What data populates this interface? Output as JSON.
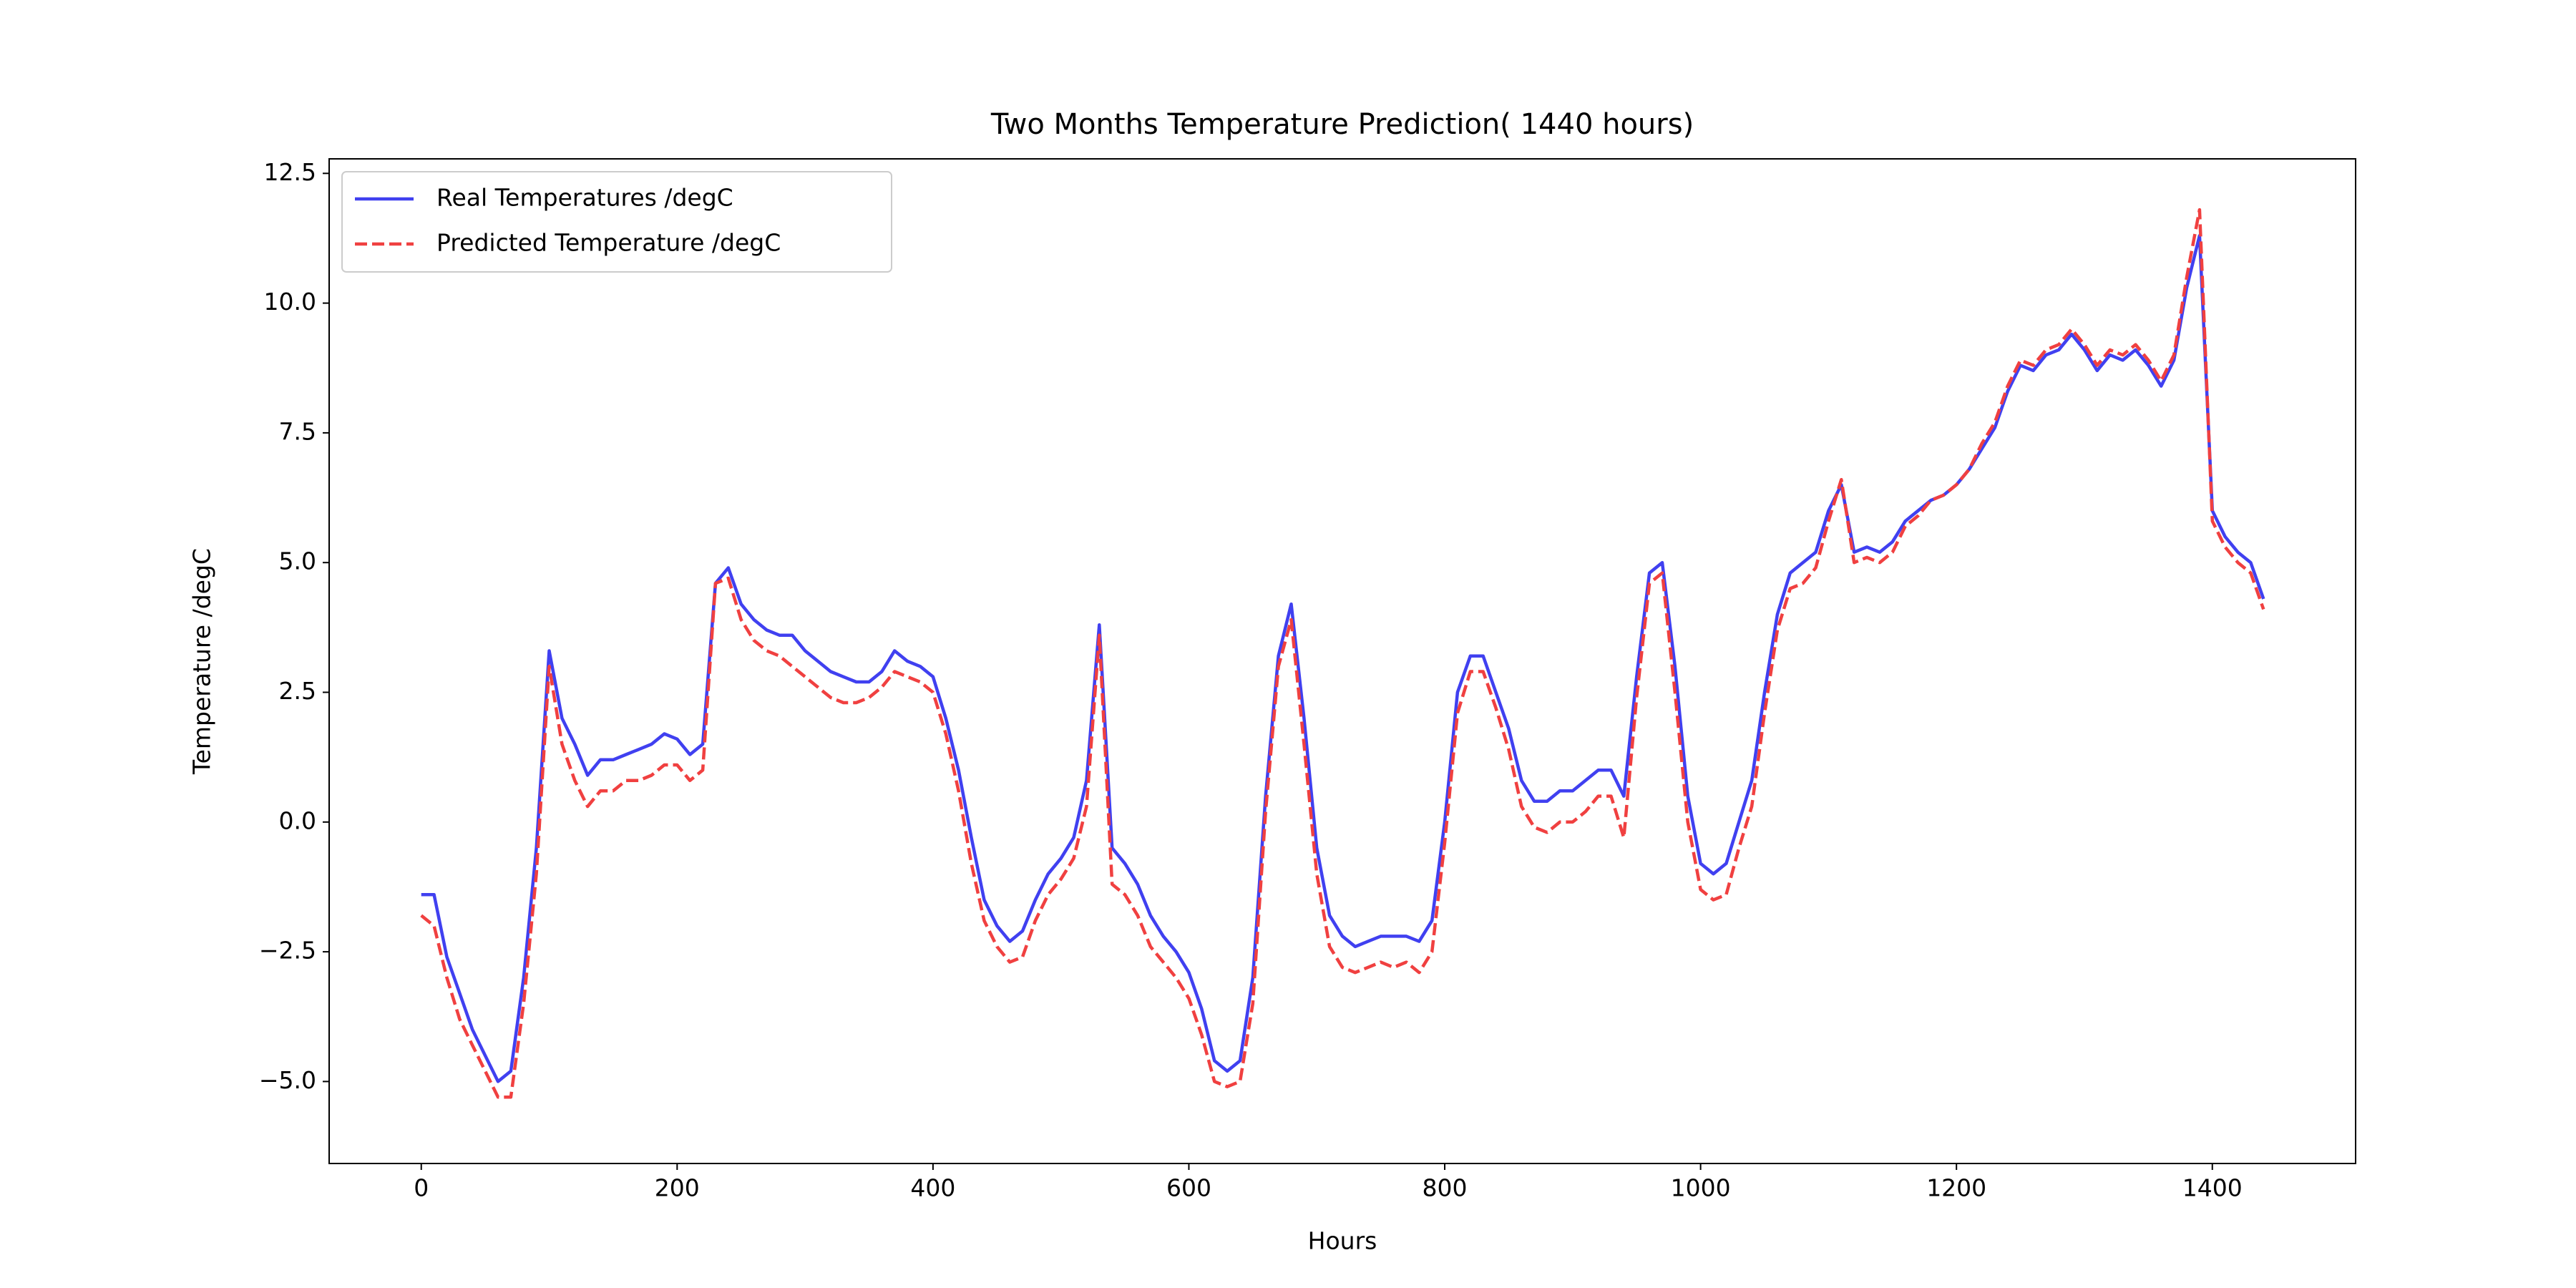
{
  "chart_data": {
    "type": "line",
    "title": "Two Months Temperature Prediction( 1440 hours)",
    "x_label": "Hours",
    "y_label": "Temperature /degC",
    "x": [
      0,
      10,
      20,
      30,
      40,
      50,
      60,
      70,
      80,
      90,
      100,
      110,
      120,
      130,
      140,
      150,
      160,
      170,
      180,
      190,
      200,
      210,
      220,
      230,
      240,
      250,
      260,
      270,
      280,
      290,
      300,
      310,
      320,
      330,
      340,
      350,
      360,
      370,
      380,
      390,
      400,
      410,
      420,
      430,
      440,
      450,
      460,
      470,
      480,
      490,
      500,
      510,
      520,
      530,
      540,
      550,
      560,
      570,
      580,
      590,
      600,
      610,
      620,
      630,
      640,
      650,
      660,
      670,
      680,
      690,
      700,
      710,
      720,
      730,
      740,
      750,
      760,
      770,
      780,
      790,
      800,
      810,
      820,
      830,
      840,
      850,
      860,
      870,
      880,
      890,
      900,
      910,
      920,
      930,
      940,
      950,
      960,
      970,
      980,
      990,
      1000,
      1010,
      1020,
      1030,
      1040,
      1050,
      1060,
      1070,
      1080,
      1090,
      1100,
      1110,
      1120,
      1130,
      1140,
      1150,
      1160,
      1170,
      1180,
      1190,
      1200,
      1210,
      1220,
      1230,
      1240,
      1250,
      1260,
      1270,
      1280,
      1290,
      1300,
      1310,
      1320,
      1330,
      1340,
      1350,
      1360,
      1370,
      1380,
      1390,
      1400,
      1410,
      1420,
      1430,
      1440
    ],
    "series": [
      {
        "name": "Real Temperatures /degC",
        "color": "#4040f0",
        "linestyle": "solid",
        "values": [
          -1.4,
          -1.4,
          -2.6,
          -3.3,
          -4.0,
          -4.5,
          -5.0,
          -4.8,
          -3.0,
          -0.5,
          3.3,
          2.0,
          1.5,
          0.9,
          1.2,
          1.2,
          1.3,
          1.4,
          1.5,
          1.7,
          1.6,
          1.3,
          1.5,
          4.6,
          4.9,
          4.2,
          3.9,
          3.7,
          3.6,
          3.6,
          3.3,
          3.1,
          2.9,
          2.8,
          2.7,
          2.7,
          2.9,
          3.3,
          3.1,
          3.0,
          2.8,
          2.0,
          1.0,
          -0.3,
          -1.5,
          -2.0,
          -2.3,
          -2.1,
          -1.5,
          -1.0,
          -0.7,
          -0.3,
          0.8,
          3.8,
          -0.5,
          -0.8,
          -1.2,
          -1.8,
          -2.2,
          -2.5,
          -2.9,
          -3.6,
          -4.6,
          -4.8,
          -4.6,
          -3.0,
          0.5,
          3.2,
          4.2,
          2.0,
          -0.5,
          -1.8,
          -2.2,
          -2.4,
          -2.3,
          -2.2,
          -2.2,
          -2.2,
          -2.3,
          -1.9,
          0.0,
          2.5,
          3.2,
          3.2,
          2.5,
          1.8,
          0.8,
          0.4,
          0.4,
          0.6,
          0.6,
          0.8,
          1.0,
          1.0,
          0.5,
          2.8,
          4.8,
          5.0,
          3.0,
          0.5,
          -0.8,
          -1.0,
          -0.8,
          0.0,
          0.8,
          2.5,
          4.0,
          4.8,
          5.0,
          5.2,
          6.0,
          6.5,
          5.2,
          5.3,
          5.2,
          5.4,
          5.8,
          6.0,
          6.2,
          6.3,
          6.5,
          6.8,
          7.2,
          7.6,
          8.3,
          8.8,
          8.7,
          9.0,
          9.1,
          9.4,
          9.1,
          8.7,
          9.0,
          8.9,
          9.1,
          8.8,
          8.4,
          8.9,
          10.3,
          11.3,
          6.0,
          5.5,
          5.2,
          5.0,
          4.3
        ]
      },
      {
        "name": "Predicted Temperature /degC",
        "color": "#f04040",
        "linestyle": "dashed",
        "values": [
          -1.8,
          -2.0,
          -3.0,
          -3.8,
          -4.3,
          -4.8,
          -5.3,
          -5.3,
          -3.5,
          -1.0,
          3.0,
          1.5,
          0.8,
          0.3,
          0.6,
          0.6,
          0.8,
          0.8,
          0.9,
          1.1,
          1.1,
          0.8,
          1.0,
          4.6,
          4.7,
          3.9,
          3.5,
          3.3,
          3.2,
          3.0,
          2.8,
          2.6,
          2.4,
          2.3,
          2.3,
          2.4,
          2.6,
          2.9,
          2.8,
          2.7,
          2.5,
          1.7,
          0.6,
          -0.8,
          -1.9,
          -2.4,
          -2.7,
          -2.6,
          -1.9,
          -1.4,
          -1.1,
          -0.7,
          0.3,
          3.6,
          -1.2,
          -1.4,
          -1.8,
          -2.4,
          -2.7,
          -3.0,
          -3.4,
          -4.1,
          -5.0,
          -5.1,
          -5.0,
          -3.5,
          0.2,
          3.0,
          3.9,
          1.5,
          -1.0,
          -2.4,
          -2.8,
          -2.9,
          -2.8,
          -2.7,
          -2.8,
          -2.7,
          -2.9,
          -2.5,
          -0.4,
          2.1,
          2.9,
          2.9,
          2.2,
          1.4,
          0.3,
          -0.1,
          -0.2,
          0.0,
          0.0,
          0.2,
          0.5,
          0.5,
          -0.3,
          2.4,
          4.6,
          4.8,
          2.5,
          0.0,
          -1.3,
          -1.5,
          -1.4,
          -0.5,
          0.3,
          2.1,
          3.7,
          4.5,
          4.6,
          4.9,
          5.8,
          6.6,
          5.0,
          5.1,
          5.0,
          5.2,
          5.7,
          5.9,
          6.2,
          6.3,
          6.5,
          6.8,
          7.3,
          7.7,
          8.4,
          8.9,
          8.8,
          9.1,
          9.2,
          9.5,
          9.2,
          8.8,
          9.1,
          9.0,
          9.2,
          8.9,
          8.5,
          9.0,
          10.5,
          11.8,
          5.8,
          5.3,
          5.0,
          4.8,
          4.1
        ]
      }
    ],
    "xlim": [
      -72,
      1512
    ],
    "ylim": [
      -6.58,
      12.78
    ],
    "xticks": [
      0,
      200,
      400,
      600,
      800,
      1000,
      1200,
      1400
    ],
    "yticks": [
      {
        "value": -5,
        "label": "−5.0"
      },
      {
        "value": -2.5,
        "label": "−2.5"
      },
      {
        "value": 0,
        "label": "0.0"
      },
      2.5,
      {
        "value": 5,
        "label": "5.0"
      },
      7.5,
      {
        "value": 10,
        "label": "10.0"
      },
      12.5
    ],
    "grid": false,
    "legend": "upper left"
  }
}
